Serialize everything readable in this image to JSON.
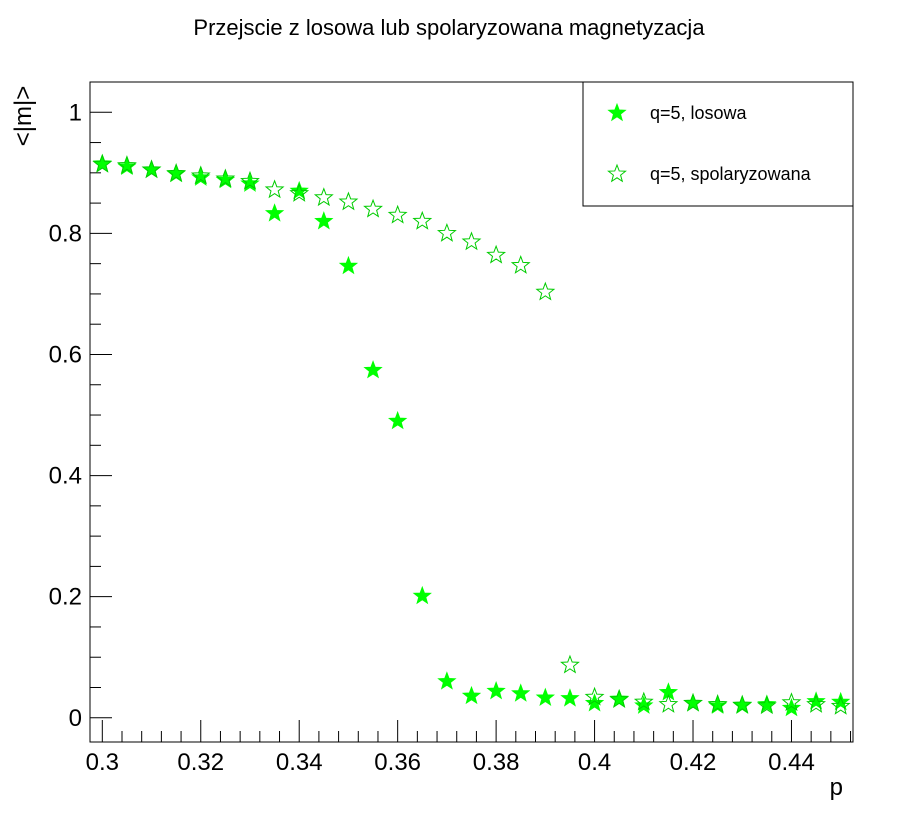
{
  "chart_data": {
    "type": "scatter",
    "title": "Przejscie z losowa lub spolaryzowana magnetyzacja",
    "xlabel": "p",
    "ylabel": "<|m|>",
    "xlim": [
      0.2975,
      0.4525
    ],
    "ylim": [
      -0.04,
      1.05
    ],
    "x_ticks": [
      "0.3",
      "0.32",
      "0.34",
      "0.36",
      "0.38",
      "0.4",
      "0.42",
      "0.44"
    ],
    "y_ticks": [
      "0",
      "0.2",
      "0.4",
      "0.6",
      "0.8",
      "1"
    ],
    "grid": false,
    "legend_position": "top-right",
    "series": [
      {
        "name": "q=5, losowa",
        "marker": "filled-star",
        "color": "#00ff00",
        "x": [
          0.3,
          0.305,
          0.31,
          0.315,
          0.32,
          0.325,
          0.33,
          0.335,
          0.34,
          0.345,
          0.35,
          0.355,
          0.36,
          0.365,
          0.37,
          0.375,
          0.38,
          0.385,
          0.39,
          0.395,
          0.4,
          0.405,
          0.41,
          0.415,
          0.42,
          0.425,
          0.43,
          0.435,
          0.44,
          0.445,
          0.45
        ],
        "y": [
          0.915,
          0.91,
          0.905,
          0.898,
          0.892,
          0.888,
          0.882,
          0.833,
          0.87,
          0.82,
          0.746,
          0.574,
          0.49,
          0.201,
          0.06,
          0.036,
          0.044,
          0.04,
          0.033,
          0.032,
          0.024,
          0.031,
          0.02,
          0.042,
          0.024,
          0.02,
          0.02,
          0.022,
          0.016,
          0.027,
          0.026
        ]
      },
      {
        "name": "q=5, spolaryzowana",
        "marker": "open-star",
        "color": "#00cc00",
        "x": [
          0.3,
          0.305,
          0.31,
          0.315,
          0.32,
          0.325,
          0.33,
          0.335,
          0.34,
          0.345,
          0.35,
          0.355,
          0.36,
          0.365,
          0.37,
          0.375,
          0.38,
          0.385,
          0.39,
          0.395,
          0.4,
          0.405,
          0.41,
          0.415,
          0.42,
          0.425,
          0.43,
          0.435,
          0.44,
          0.445,
          0.45
        ],
        "y": [
          0.914,
          0.912,
          0.905,
          0.899,
          0.895,
          0.89,
          0.886,
          0.872,
          0.866,
          0.859,
          0.852,
          0.84,
          0.83,
          0.82,
          0.8,
          0.786,
          0.764,
          0.747,
          0.703,
          0.087,
          0.034,
          0.03,
          0.026,
          0.022,
          0.024,
          0.022,
          0.021,
          0.02,
          0.025,
          0.022,
          0.019
        ]
      }
    ]
  }
}
